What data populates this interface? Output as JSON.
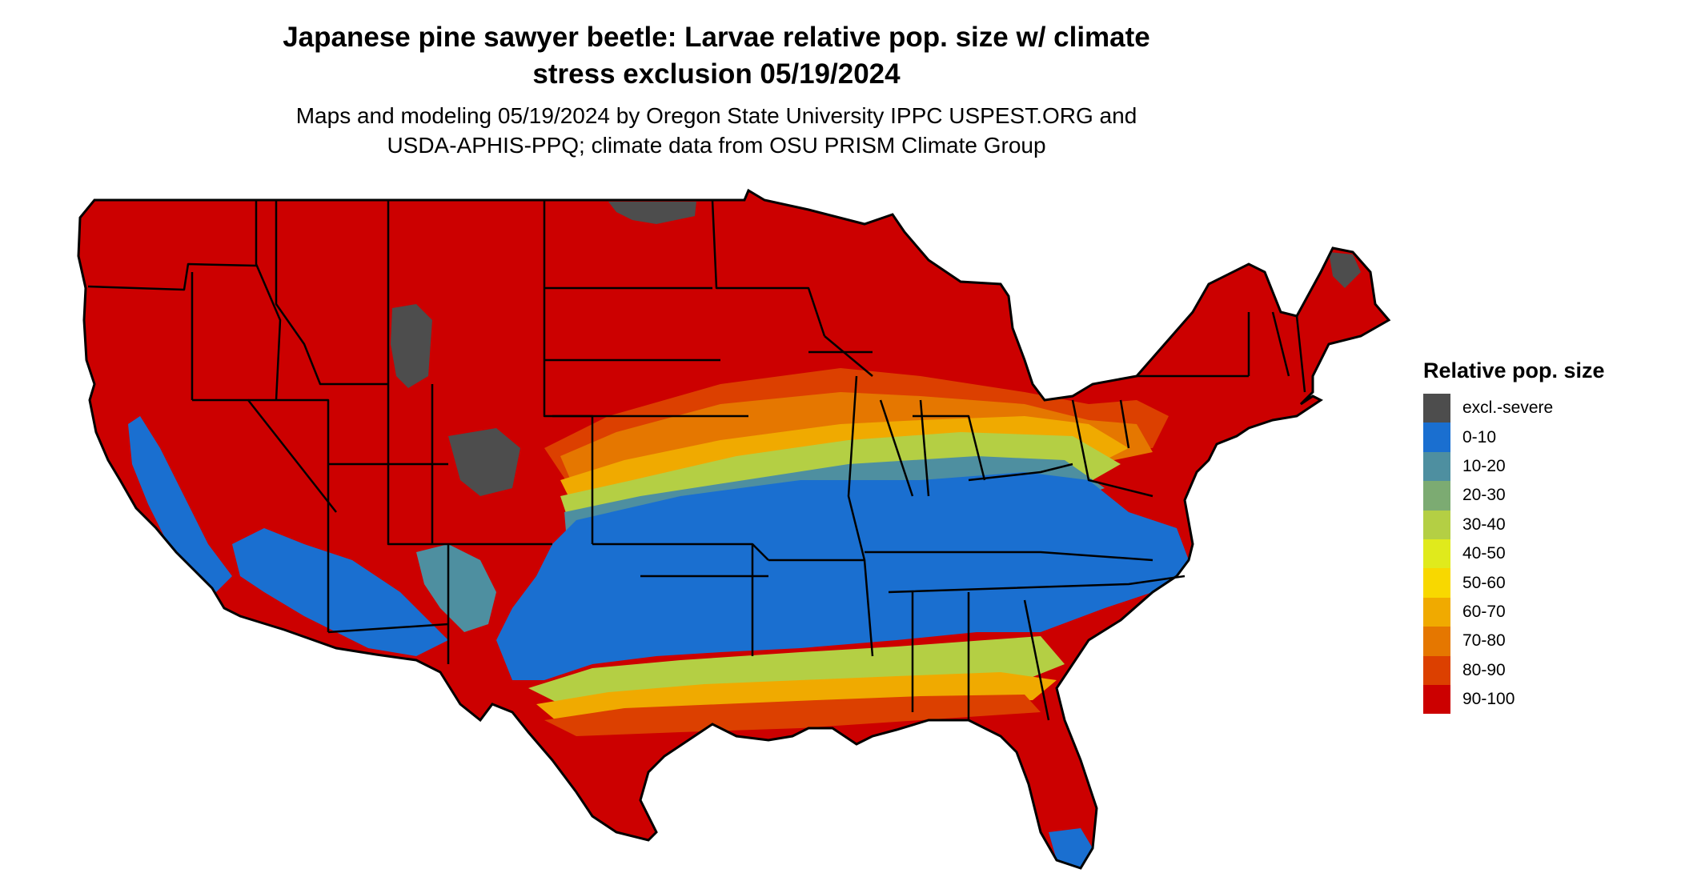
{
  "title_line1": "Japanese pine sawyer beetle: Larvae relative pop. size w/ climate",
  "title_line2": "stress exclusion 05/19/2024",
  "subtitle_line1": "Maps and modeling 05/19/2024 by Oregon State University IPPC USPEST.ORG and",
  "subtitle_line2": "USDA-APHIS-PPQ; climate data from OSU PRISM Climate Group",
  "legend": {
    "title": "Relative pop. size",
    "items": [
      {
        "label": "excl.-severe",
        "color": "#4d4d4d"
      },
      {
        "label": "0-10",
        "color": "#1a6fd0"
      },
      {
        "label": "10-20",
        "color": "#4e8fa0"
      },
      {
        "label": "20-30",
        "color": "#7cab72"
      },
      {
        "label": "30-40",
        "color": "#b4cf44"
      },
      {
        "label": "40-50",
        "color": "#e0ea1c"
      },
      {
        "label": "50-60",
        "color": "#f8d800"
      },
      {
        "label": "60-70",
        "color": "#f0aa00"
      },
      {
        "label": "70-80",
        "color": "#e57700"
      },
      {
        "label": "80-90",
        "color": "#dc4000"
      },
      {
        "label": "90-100",
        "color": "#cc0000"
      }
    ]
  }
}
